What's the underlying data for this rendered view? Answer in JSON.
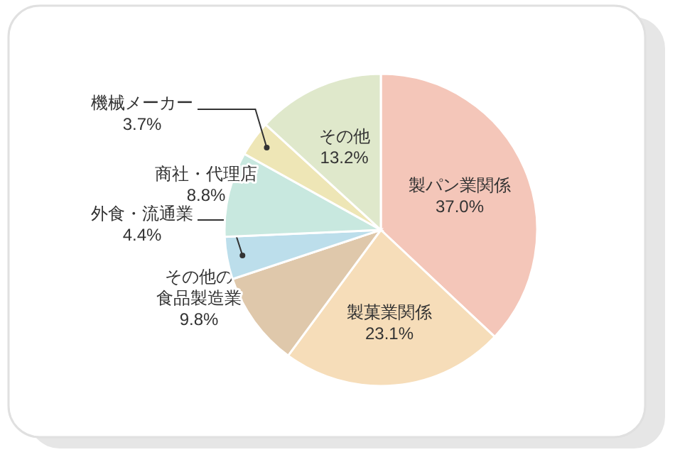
{
  "chart_data": {
    "type": "pie",
    "categories": [
      "製パン業関係",
      "製菓業関係",
      "その他の食品製造業",
      "外食・流通業",
      "商社・代理店",
      "機械メーカー",
      "その他"
    ],
    "values": [
      37.0,
      23.1,
      9.8,
      4.4,
      8.8,
      3.7,
      13.2
    ],
    "colors": [
      "#f4c6b9",
      "#f6ddb9",
      "#dfc8ab",
      "#bcdeeb",
      "#c8e8df",
      "#eee6b6",
      "#dfe8cb"
    ],
    "value_labels": [
      "37.0%",
      "23.1%",
      "9.8%",
      "4.4%",
      "8.8%",
      "3.7%",
      "13.2%"
    ]
  }
}
